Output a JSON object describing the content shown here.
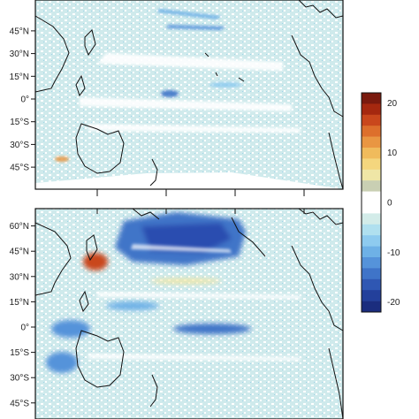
{
  "panels": [
    {
      "id": "top",
      "lat_ticks": [
        "45°N",
        "30°N",
        "15°N",
        "0°",
        "15°S",
        "30°S",
        "45°S"
      ],
      "lat_values": [
        45,
        30,
        15,
        0,
        -15,
        -30,
        -45
      ]
    },
    {
      "id": "bottom",
      "lat_ticks": [
        "60°N",
        "45°N",
        "30°N",
        "15°N",
        "0°",
        "15°S",
        "30°S",
        "45°S"
      ],
      "lat_values": [
        60,
        45,
        30,
        15,
        0,
        -15,
        -30,
        -45
      ]
    }
  ],
  "colorbar": {
    "tick_labels": [
      "20",
      "10",
      "0",
      "-10",
      "-20"
    ],
    "tick_values": [
      20,
      10,
      0,
      -10,
      -20
    ],
    "range": [
      -22,
      22
    ],
    "colors": [
      "#7a1a0e",
      "#a5280f",
      "#c9471c",
      "#dd6f2c",
      "#e99642",
      "#f0bb5c",
      "#f4d67e",
      "#efe6a6",
      "#c9cfb3",
      "#ffffff",
      "#ffffff",
      "#d3ece9",
      "#b0e0ef",
      "#8ecbef",
      "#6eb1e6",
      "#5593da",
      "#3f74c8",
      "#2f57b3",
      "#23409b",
      "#1b2d7e"
    ]
  },
  "map_colors": {
    "land_outline": "#111111",
    "ocean_white": "#ffffff",
    "pale_anomaly": "#cfeaec",
    "light_blue": "#a9d8ee",
    "mid_blue": "#5c98dc",
    "deep_blue": "#2a4eb0",
    "warm_yellow": "#e8c870",
    "warm_red": "#c9471c"
  }
}
